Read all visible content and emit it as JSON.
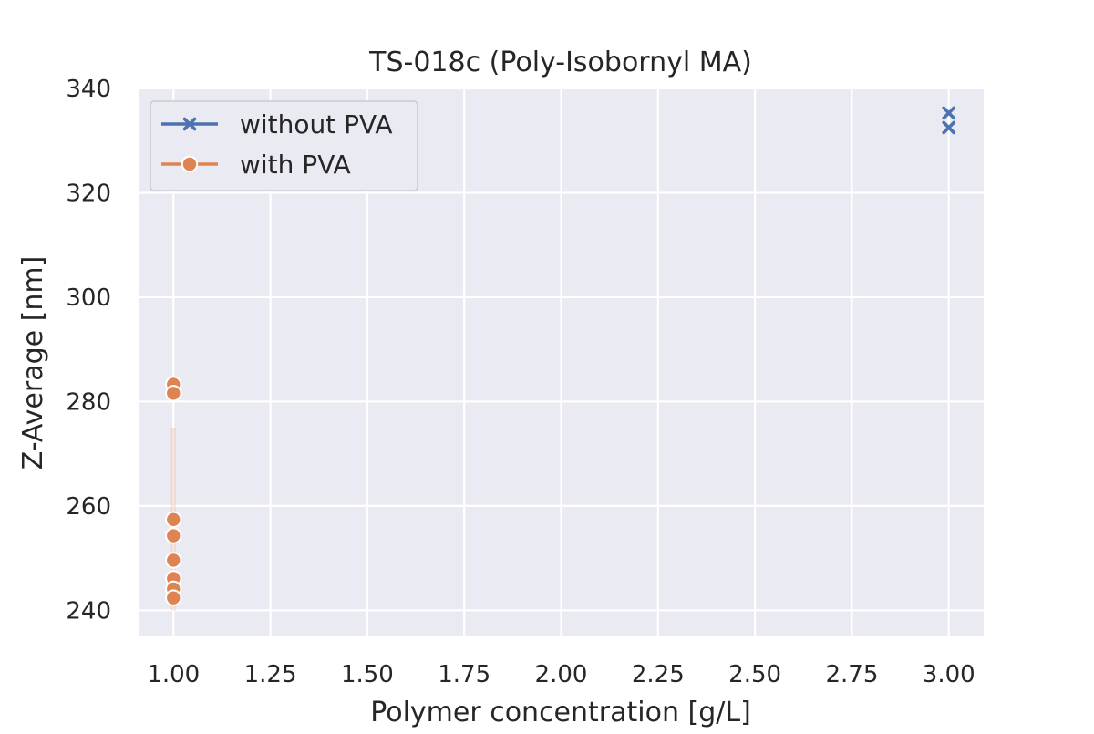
{
  "chart_data": {
    "type": "scatter",
    "title": "TS-018c (Poly-Isobornyl MA)",
    "xlabel": "Polymer concentration [g/L]",
    "ylabel": "Z-Average [nm]",
    "xlim": [
      0.91,
      3.09
    ],
    "ylim": [
      235,
      340
    ],
    "x_ticks": [
      "1.00",
      "1.25",
      "1.50",
      "1.75",
      "2.00",
      "2.25",
      "2.50",
      "2.75",
      "3.00"
    ],
    "y_ticks": [
      "240",
      "260",
      "280",
      "300",
      "320",
      "340"
    ],
    "grid": true,
    "legend_position": "top-left",
    "background": "#EAEAF2",
    "series": [
      {
        "name": "without PVA",
        "marker": "x",
        "color": "#4C72B0",
        "points": [
          {
            "x": 3.0,
            "y": 335.3
          },
          {
            "x": 3.0,
            "y": 332.5
          }
        ]
      },
      {
        "name": "with PVA",
        "marker": "circle",
        "color": "#DD8452",
        "points": [
          {
            "x": 1.0,
            "y": 283.3
          },
          {
            "x": 1.0,
            "y": 281.6
          },
          {
            "x": 1.0,
            "y": 257.4
          },
          {
            "x": 1.0,
            "y": 254.3
          },
          {
            "x": 1.0,
            "y": 249.6
          },
          {
            "x": 1.0,
            "y": 246.1
          },
          {
            "x": 1.0,
            "y": 244.1
          },
          {
            "x": 1.0,
            "y": 242.4
          }
        ],
        "error_band": {
          "x": 1.0,
          "y_low": 240.0,
          "y_high": 275.0
        }
      }
    ]
  }
}
